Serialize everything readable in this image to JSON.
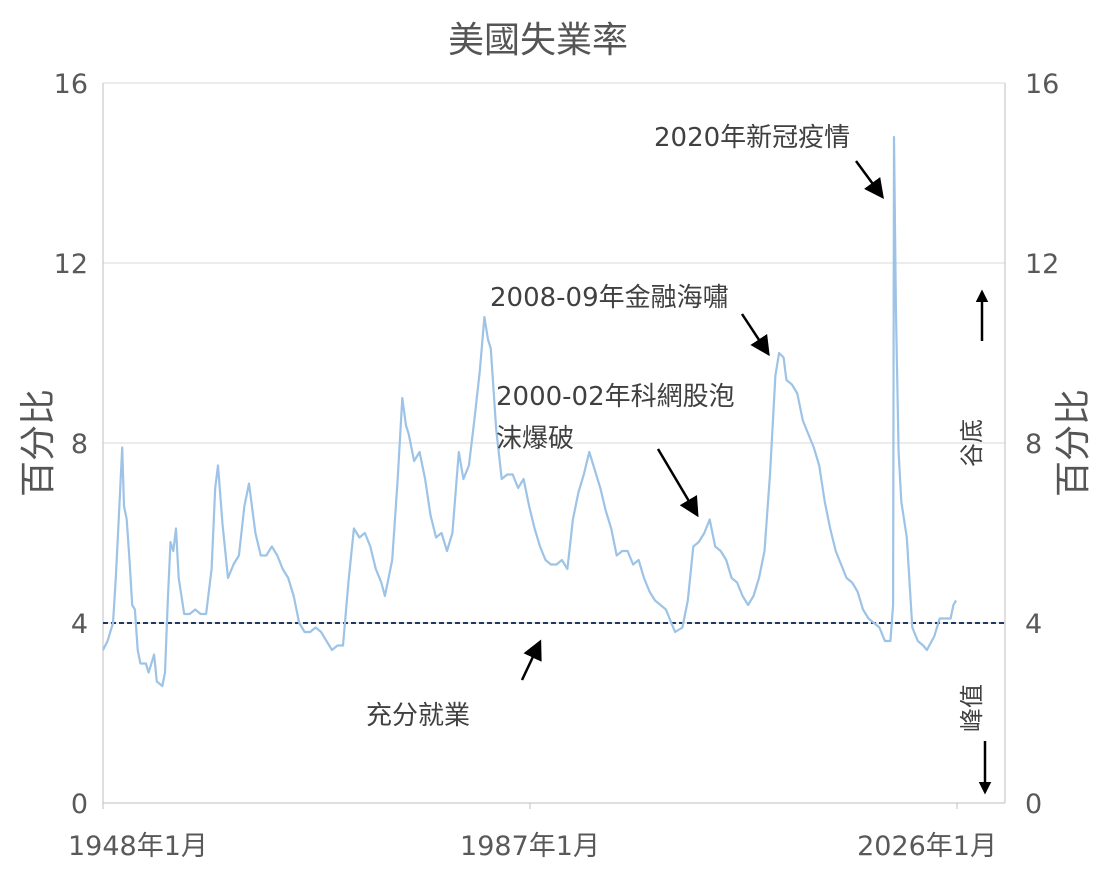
{
  "chart_data": {
    "type": "line",
    "title": "美國失業率",
    "ylabel_left": "百分比",
    "ylabel_right": "百分比",
    "x_range": [
      "1948-01",
      "2026-01"
    ],
    "x_tick_labels": [
      "1948年1月",
      "1987年1月",
      "2026年1月"
    ],
    "y_ticks": [
      0,
      4,
      8,
      12,
      16
    ],
    "ylim": [
      0,
      16
    ],
    "grid": "horizontal",
    "colors": {
      "series": "#9dc3e6",
      "reference": "#1f3864",
      "grid": "#d9d9d9",
      "axis": "#bfbfbf",
      "text": "#404040"
    },
    "series": [
      {
        "points": [
          [
            "1948-01",
            3.4
          ],
          [
            "1948-06",
            3.6
          ],
          [
            "1948-12",
            4.0
          ],
          [
            "1949-03",
            5.0
          ],
          [
            "1949-06",
            6.2
          ],
          [
            "1949-10",
            7.9
          ],
          [
            "1949-12",
            6.6
          ],
          [
            "1950-03",
            6.3
          ],
          [
            "1950-06",
            5.4
          ],
          [
            "1950-09",
            4.4
          ],
          [
            "1950-12",
            4.3
          ],
          [
            "1951-03",
            3.4
          ],
          [
            "1951-06",
            3.1
          ],
          [
            "1951-12",
            3.1
          ],
          [
            "1952-03",
            2.9
          ],
          [
            "1952-06",
            3.1
          ],
          [
            "1952-09",
            3.3
          ],
          [
            "1952-12",
            2.7
          ],
          [
            "1953-06",
            2.6
          ],
          [
            "1953-09",
            2.9
          ],
          [
            "1953-12",
            4.5
          ],
          [
            "1954-03",
            5.8
          ],
          [
            "1954-06",
            5.6
          ],
          [
            "1954-09",
            6.1
          ],
          [
            "1954-12",
            5.0
          ],
          [
            "1955-06",
            4.2
          ],
          [
            "1955-12",
            4.2
          ],
          [
            "1956-06",
            4.3
          ],
          [
            "1956-12",
            4.2
          ],
          [
            "1957-06",
            4.2
          ],
          [
            "1957-12",
            5.2
          ],
          [
            "1958-04",
            7.0
          ],
          [
            "1958-07",
            7.5
          ],
          [
            "1958-12",
            6.2
          ],
          [
            "1959-06",
            5.0
          ],
          [
            "1959-12",
            5.3
          ],
          [
            "1960-06",
            5.5
          ],
          [
            "1960-12",
            6.6
          ],
          [
            "1961-05",
            7.1
          ],
          [
            "1961-12",
            6.0
          ],
          [
            "1962-06",
            5.5
          ],
          [
            "1962-12",
            5.5
          ],
          [
            "1963-06",
            5.7
          ],
          [
            "1963-12",
            5.5
          ],
          [
            "1964-06",
            5.2
          ],
          [
            "1964-12",
            5.0
          ],
          [
            "1965-06",
            4.6
          ],
          [
            "1965-12",
            4.0
          ],
          [
            "1966-06",
            3.8
          ],
          [
            "1966-12",
            3.8
          ],
          [
            "1967-06",
            3.9
          ],
          [
            "1967-12",
            3.8
          ],
          [
            "1968-06",
            3.6
          ],
          [
            "1968-12",
            3.4
          ],
          [
            "1969-06",
            3.5
          ],
          [
            "1969-12",
            3.5
          ],
          [
            "1970-06",
            4.9
          ],
          [
            "1970-12",
            6.1
          ],
          [
            "1971-06",
            5.9
          ],
          [
            "1971-12",
            6.0
          ],
          [
            "1972-06",
            5.7
          ],
          [
            "1972-12",
            5.2
          ],
          [
            "1973-06",
            4.9
          ],
          [
            "1973-10",
            4.6
          ],
          [
            "1974-06",
            5.4
          ],
          [
            "1974-12",
            7.2
          ],
          [
            "1975-05",
            9.0
          ],
          [
            "1975-09",
            8.4
          ],
          [
            "1975-12",
            8.2
          ],
          [
            "1976-06",
            7.6
          ],
          [
            "1976-12",
            7.8
          ],
          [
            "1977-06",
            7.2
          ],
          [
            "1977-12",
            6.4
          ],
          [
            "1978-06",
            5.9
          ],
          [
            "1978-12",
            6.0
          ],
          [
            "1979-06",
            5.6
          ],
          [
            "1979-12",
            6.0
          ],
          [
            "1980-07",
            7.8
          ],
          [
            "1980-12",
            7.2
          ],
          [
            "1981-06",
            7.5
          ],
          [
            "1981-12",
            8.5
          ],
          [
            "1982-06",
            9.6
          ],
          [
            "1982-11",
            10.8
          ],
          [
            "1983-03",
            10.3
          ],
          [
            "1983-06",
            10.1
          ],
          [
            "1983-12",
            8.3
          ],
          [
            "1984-06",
            7.2
          ],
          [
            "1984-12",
            7.3
          ],
          [
            "1985-06",
            7.3
          ],
          [
            "1985-12",
            7.0
          ],
          [
            "1986-06",
            7.2
          ],
          [
            "1986-12",
            6.6
          ],
          [
            "1987-06",
            6.1
          ],
          [
            "1987-12",
            5.7
          ],
          [
            "1988-06",
            5.4
          ],
          [
            "1988-12",
            5.3
          ],
          [
            "1989-06",
            5.3
          ],
          [
            "1989-12",
            5.4
          ],
          [
            "1990-06",
            5.2
          ],
          [
            "1990-12",
            6.3
          ],
          [
            "1991-06",
            6.9
          ],
          [
            "1991-12",
            7.3
          ],
          [
            "1992-06",
            7.8
          ],
          [
            "1992-12",
            7.4
          ],
          [
            "1993-06",
            7.0
          ],
          [
            "1993-12",
            6.5
          ],
          [
            "1994-06",
            6.1
          ],
          [
            "1994-12",
            5.5
          ],
          [
            "1995-06",
            5.6
          ],
          [
            "1995-12",
            5.6
          ],
          [
            "1996-06",
            5.3
          ],
          [
            "1996-12",
            5.4
          ],
          [
            "1997-06",
            5.0
          ],
          [
            "1997-12",
            4.7
          ],
          [
            "1998-06",
            4.5
          ],
          [
            "1998-12",
            4.4
          ],
          [
            "1999-06",
            4.3
          ],
          [
            "1999-12",
            4.0
          ],
          [
            "2000-04",
            3.8
          ],
          [
            "2000-12",
            3.9
          ],
          [
            "2001-06",
            4.5
          ],
          [
            "2001-12",
            5.7
          ],
          [
            "2002-06",
            5.8
          ],
          [
            "2002-12",
            6.0
          ],
          [
            "2003-06",
            6.3
          ],
          [
            "2003-12",
            5.7
          ],
          [
            "2004-06",
            5.6
          ],
          [
            "2004-12",
            5.4
          ],
          [
            "2005-06",
            5.0
          ],
          [
            "2005-12",
            4.9
          ],
          [
            "2006-06",
            4.6
          ],
          [
            "2006-12",
            4.4
          ],
          [
            "2007-06",
            4.6
          ],
          [
            "2007-12",
            5.0
          ],
          [
            "2008-06",
            5.6
          ],
          [
            "2008-12",
            7.3
          ],
          [
            "2009-06",
            9.5
          ],
          [
            "2009-10",
            10.0
          ],
          [
            "2010-03",
            9.9
          ],
          [
            "2010-06",
            9.4
          ],
          [
            "2010-12",
            9.3
          ],
          [
            "2011-06",
            9.1
          ],
          [
            "2011-12",
            8.5
          ],
          [
            "2012-06",
            8.2
          ],
          [
            "2012-12",
            7.9
          ],
          [
            "2013-06",
            7.5
          ],
          [
            "2013-12",
            6.7
          ],
          [
            "2014-06",
            6.1
          ],
          [
            "2014-12",
            5.6
          ],
          [
            "2015-06",
            5.3
          ],
          [
            "2015-12",
            5.0
          ],
          [
            "2016-06",
            4.9
          ],
          [
            "2016-12",
            4.7
          ],
          [
            "2017-06",
            4.3
          ],
          [
            "2017-12",
            4.1
          ],
          [
            "2018-06",
            4.0
          ],
          [
            "2018-12",
            3.9
          ],
          [
            "2019-06",
            3.6
          ],
          [
            "2019-12",
            3.6
          ],
          [
            "2020-03",
            4.4
          ],
          [
            "2020-04",
            14.8
          ],
          [
            "2020-06",
            11.0
          ],
          [
            "2020-09",
            7.8
          ],
          [
            "2020-12",
            6.7
          ],
          [
            "2021-06",
            5.9
          ],
          [
            "2021-12",
            3.9
          ],
          [
            "2022-06",
            3.6
          ],
          [
            "2022-12",
            3.5
          ],
          [
            "2023-04",
            3.4
          ],
          [
            "2023-12",
            3.7
          ],
          [
            "2024-06",
            4.1
          ],
          [
            "2024-12",
            4.1
          ],
          [
            "2025-06",
            4.1
          ],
          [
            "2025-09",
            4.4
          ],
          [
            "2025-12",
            4.5
          ]
        ]
      }
    ],
    "reference_line": {
      "y": 4,
      "style": "dashed"
    },
    "annotations": [
      {
        "text": "2020年新冠疫情",
        "x": "2020-04",
        "y": 13.4
      },
      {
        "text": "2008-09年金融海嘯",
        "x": "2009-10",
        "y": 10.0
      },
      {
        "text_lines": [
          "2000-02年科網股泡",
          "沫爆破"
        ],
        "x": "2003-06",
        "y": 6.4
      },
      {
        "text": "充分就業",
        "x": "1987-12",
        "y": 4.0
      }
    ],
    "side_labels": {
      "top": "谷底",
      "bottom": "峰值"
    }
  }
}
